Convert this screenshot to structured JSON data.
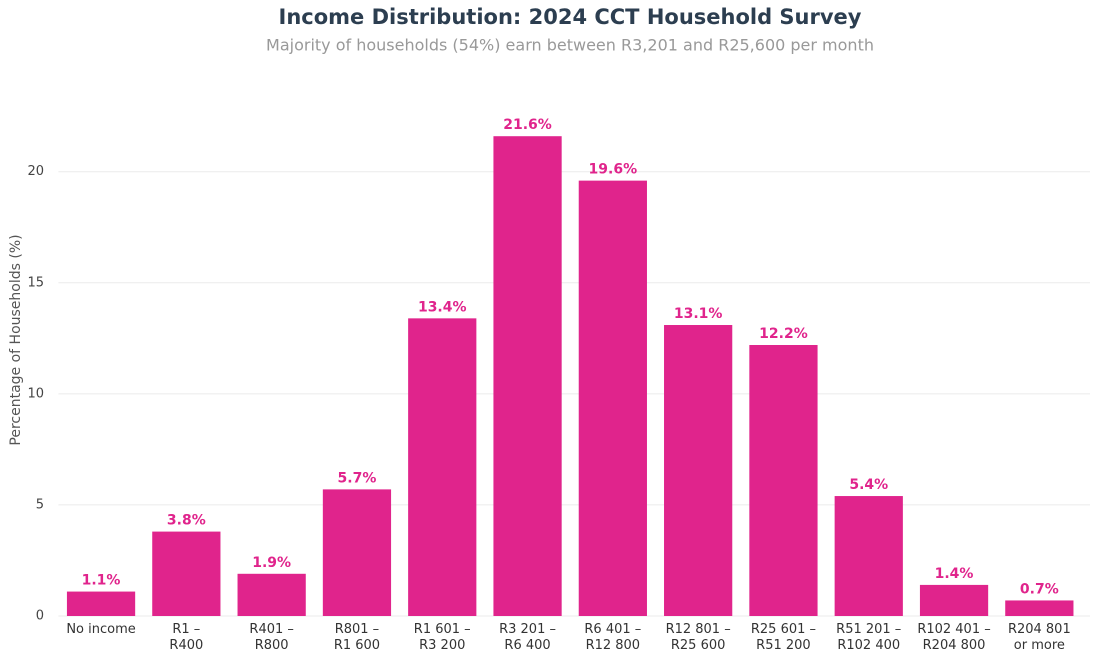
{
  "chart_data": {
    "type": "bar",
    "title": "Income Distribution: 2024 CCT Household Survey",
    "subtitle": "Majority of households (54%) earn between R3,201 and R25,600 per month",
    "y_label": "Percentage of Households (%)",
    "categories": [
      "No income",
      "R1 –\nR400",
      "R401 –\nR800",
      "R801 –\nR1 600",
      "R1 601 –\nR3 200",
      "R3 201 –\nR6 400",
      "R6 401 –\nR12 800",
      "R12 801 –\nR25 600",
      "R25 601 –\nR51 200",
      "R51 201 –\nR102 400",
      "R102 401 –\nR204 800",
      "R204 801\nor more"
    ],
    "values": [
      1.1,
      3.8,
      1.9,
      5.7,
      13.4,
      21.6,
      19.6,
      13.1,
      12.2,
      5.4,
      1.4,
      0.7
    ],
    "value_labels": [
      "1.1%",
      "3.8%",
      "1.9%",
      "5.7%",
      "13.4%",
      "21.6%",
      "19.6%",
      "13.1%",
      "12.2%",
      "5.4%",
      "1.4%",
      "0.7%"
    ],
    "color": "#e0248c",
    "ylim": [
      0,
      23.5
    ],
    "yticks": [
      0,
      5,
      10,
      15,
      20
    ],
    "grid": true
  }
}
